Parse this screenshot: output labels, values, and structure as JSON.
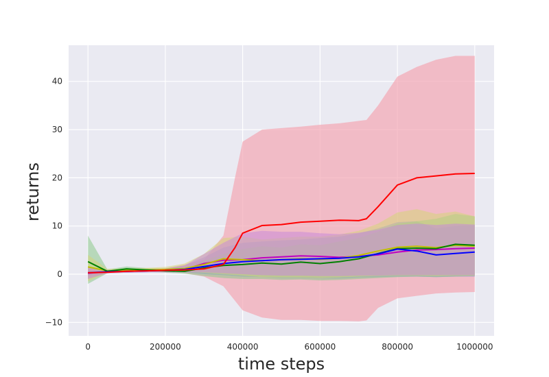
{
  "chart_data": {
    "type": "line",
    "xlabel": "time steps",
    "ylabel": "returns",
    "xlim": [
      -50000,
      1050000
    ],
    "ylim": [
      -12.8,
      47.5
    ],
    "xticks": [
      0,
      200000,
      400000,
      600000,
      800000,
      1000000
    ],
    "xtick_labels": [
      "0",
      "200000",
      "400000",
      "600000",
      "800000",
      "1000000"
    ],
    "yticks": [
      -10,
      0,
      10,
      20,
      30,
      40
    ],
    "ytick_labels": [
      "−10",
      "0",
      "10",
      "20",
      "30",
      "40"
    ],
    "grid": true,
    "background": "#eaeaf2",
    "series": [
      {
        "color": "#ff0000",
        "band_color": "#f4a7b3",
        "x": [
          0,
          50000,
          100000,
          150000,
          200000,
          250000,
          300000,
          350000,
          380000,
          400000,
          450000,
          500000,
          550000,
          600000,
          650000,
          700000,
          720000,
          750000,
          800000,
          850000,
          900000,
          950000,
          1000000
        ],
        "mean": [
          0.3,
          0.4,
          0.6,
          0.7,
          0.8,
          0.9,
          1.1,
          2.0,
          5.5,
          8.5,
          10.1,
          10.3,
          10.8,
          11.0,
          11.2,
          11.1,
          11.5,
          14.0,
          18.5,
          20.0,
          20.4,
          20.8,
          20.9
        ],
        "lower": [
          -1.0,
          0.2,
          0.3,
          0.4,
          0.5,
          0.2,
          -0.5,
          -2.5,
          -5.5,
          -7.5,
          -9.0,
          -9.5,
          -9.5,
          -9.7,
          -9.7,
          -9.8,
          -9.6,
          -7.0,
          -5.0,
          -4.5,
          -4.0,
          -3.8,
          -3.7
        ],
        "upper": [
          1.5,
          0.8,
          0.9,
          1.0,
          1.2,
          2.0,
          3.0,
          8.0,
          20.0,
          27.5,
          30.0,
          30.3,
          30.6,
          31.0,
          31.3,
          31.8,
          32.0,
          35.0,
          41.0,
          43.0,
          44.5,
          45.3,
          45.3
        ]
      },
      {
        "color": "#0000ff",
        "band_color": "#8a8ae0",
        "x": [
          0,
          50000,
          100000,
          150000,
          200000,
          250000,
          300000,
          350000,
          400000,
          450000,
          500000,
          550000,
          600000,
          650000,
          700000,
          750000,
          800000,
          850000,
          900000,
          950000,
          1000000
        ],
        "mean": [
          0.3,
          0.5,
          0.6,
          0.7,
          0.8,
          1.0,
          1.6,
          2.2,
          2.6,
          2.8,
          3.0,
          3.1,
          3.2,
          3.3,
          3.6,
          4.2,
          5.2,
          4.8,
          4.0,
          4.3,
          4.6
        ],
        "lower": [
          -0.5,
          0.2,
          0.3,
          0.4,
          0.4,
          0.4,
          0.0,
          -0.2,
          -0.5,
          -0.6,
          -0.8,
          -0.8,
          -0.9,
          -0.9,
          -0.7,
          -0.6,
          -0.5,
          -0.5,
          -0.6,
          -0.5,
          -0.5
        ],
        "upper": [
          1.2,
          0.9,
          0.9,
          1.0,
          1.2,
          1.8,
          3.5,
          5.5,
          6.5,
          6.8,
          7.0,
          7.2,
          7.5,
          7.8,
          8.5,
          9.5,
          10.8,
          11.0,
          9.5,
          10.0,
          10.2
        ]
      },
      {
        "color": "#008000",
        "band_color": "#8cc98c",
        "x": [
          0,
          50000,
          100000,
          150000,
          200000,
          250000,
          300000,
          350000,
          400000,
          450000,
          500000,
          550000,
          600000,
          650000,
          700000,
          750000,
          800000,
          850000,
          900000,
          950000,
          1000000
        ],
        "mean": [
          2.6,
          0.6,
          1.1,
          0.9,
          0.7,
          0.6,
          1.3,
          1.8,
          2.0,
          2.3,
          2.1,
          2.5,
          2.2,
          2.6,
          3.2,
          4.3,
          5.3,
          5.4,
          5.3,
          6.2,
          6.0
        ],
        "lower": [
          -2.0,
          0.2,
          0.6,
          0.5,
          0.3,
          0.1,
          -0.4,
          -0.8,
          -1.0,
          -1.0,
          -1.2,
          -1.1,
          -1.3,
          -1.2,
          -1.0,
          -0.8,
          -0.6,
          -0.5,
          -0.6,
          -0.5,
          -0.4
        ],
        "upper": [
          8.0,
          1.0,
          1.6,
          1.3,
          1.1,
          1.2,
          2.8,
          4.2,
          5.2,
          5.8,
          5.5,
          6.2,
          6.0,
          6.8,
          7.5,
          8.8,
          10.5,
          11.0,
          11.5,
          12.5,
          12.0
        ]
      },
      {
        "color": "#bfbf00",
        "band_color": "#d6d67a",
        "x": [
          0,
          50000,
          100000,
          150000,
          200000,
          250000,
          300000,
          350000,
          400000,
          450000,
          500000,
          550000,
          600000,
          650000,
          700000,
          750000,
          800000,
          850000,
          900000,
          950000,
          1000000
        ],
        "mean": [
          1.5,
          0.7,
          0.8,
          0.9,
          1.0,
          1.2,
          2.0,
          3.2,
          3.0,
          2.8,
          3.0,
          3.2,
          3.1,
          3.3,
          3.9,
          4.8,
          5.6,
          5.8,
          5.5,
          6.0,
          5.8
        ],
        "lower": [
          -1.5,
          0.3,
          0.4,
          0.5,
          0.5,
          0.5,
          0.3,
          0.0,
          -0.3,
          -0.6,
          -0.7,
          -0.7,
          -0.8,
          -0.7,
          -0.5,
          -0.4,
          -0.3,
          -0.3,
          -0.4,
          -0.3,
          -0.3
        ],
        "upper": [
          4.0,
          1.1,
          1.2,
          1.3,
          1.5,
          2.2,
          4.2,
          7.5,
          7.8,
          7.2,
          7.5,
          7.8,
          7.8,
          8.2,
          9.0,
          10.5,
          12.8,
          13.5,
          12.5,
          13.0,
          12.0
        ]
      },
      {
        "color": "#bf00bf",
        "band_color": "#c98ad9",
        "x": [
          0,
          50000,
          100000,
          150000,
          200000,
          250000,
          300000,
          350000,
          400000,
          450000,
          500000,
          550000,
          600000,
          650000,
          700000,
          750000,
          800000,
          850000,
          900000,
          950000,
          1000000
        ],
        "mean": [
          0.2,
          0.5,
          0.6,
          0.7,
          0.8,
          1.0,
          2.2,
          2.9,
          3.0,
          3.4,
          3.6,
          3.8,
          3.7,
          3.5,
          3.7,
          4.0,
          4.6,
          5.0,
          5.1,
          5.3,
          5.4
        ],
        "lower": [
          -1.0,
          0.2,
          0.3,
          0.4,
          0.4,
          0.4,
          0.4,
          0.2,
          0.0,
          -0.2,
          -0.3,
          -0.3,
          -0.4,
          -0.4,
          -0.3,
          -0.3,
          -0.2,
          -0.2,
          -0.2,
          -0.2,
          -0.2
        ],
        "upper": [
          1.5,
          0.9,
          0.9,
          1.0,
          1.2,
          1.8,
          4.2,
          6.5,
          8.5,
          9.0,
          8.8,
          8.8,
          8.5,
          8.3,
          8.6,
          9.2,
          10.2,
          10.5,
          10.2,
          10.5,
          10.3
        ]
      }
    ]
  }
}
